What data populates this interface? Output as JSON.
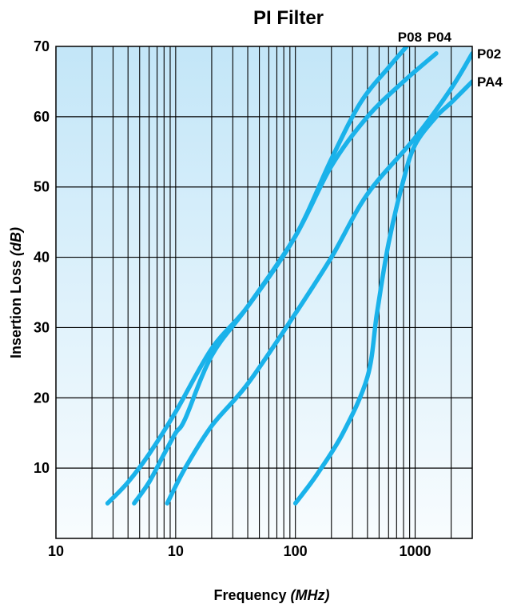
{
  "chart_data": {
    "type": "line",
    "title": "PI Filter",
    "xlabel": "Frequency",
    "xlabel_unit": "(MHz)",
    "ylabel": "Insertion Loss",
    "ylabel_unit": "(dB)",
    "x_scale": "log",
    "xlim": [
      1,
      3000
    ],
    "ylim": [
      0,
      70
    ],
    "x_tick_labels": [
      "10",
      "10",
      "100",
      "1000"
    ],
    "y_ticks": [
      10,
      20,
      30,
      40,
      50,
      60,
      70
    ],
    "grid": true,
    "colors": {
      "line": "#1ab2ea",
      "plot_top": "#c3e6f8",
      "plot_bottom": "#f8fcfe",
      "grid": "#000000"
    },
    "series": [
      {
        "name": "P08",
        "x": [
          2.7,
          4,
          6,
          10,
          20,
          40,
          100,
          200,
          350,
          600,
          850
        ],
        "y": [
          5,
          8,
          12,
          18,
          27,
          33,
          43,
          54,
          62,
          67,
          70
        ]
      },
      {
        "name": "P04",
        "x": [
          4.5,
          6,
          8,
          10,
          12,
          20,
          40,
          100,
          200,
          400,
          800,
          1500
        ],
        "y": [
          5,
          8,
          12,
          15,
          17,
          26,
          33,
          43,
          53,
          60,
          65,
          69
        ]
      },
      {
        "name": "P02",
        "x": [
          8.5,
          12,
          20,
          40,
          100,
          200,
          400,
          1000,
          2000,
          3000
        ],
        "y": [
          5,
          10,
          16,
          22,
          32,
          40,
          49,
          57,
          64,
          69
        ]
      },
      {
        "name": "PA4",
        "x": [
          100,
          150,
          250,
          400,
          480,
          600,
          800,
          1000,
          1500,
          2000,
          3000
        ],
        "y": [
          5,
          9,
          15,
          23,
          32,
          42,
          51,
          56,
          60,
          62,
          65
        ]
      }
    ]
  }
}
